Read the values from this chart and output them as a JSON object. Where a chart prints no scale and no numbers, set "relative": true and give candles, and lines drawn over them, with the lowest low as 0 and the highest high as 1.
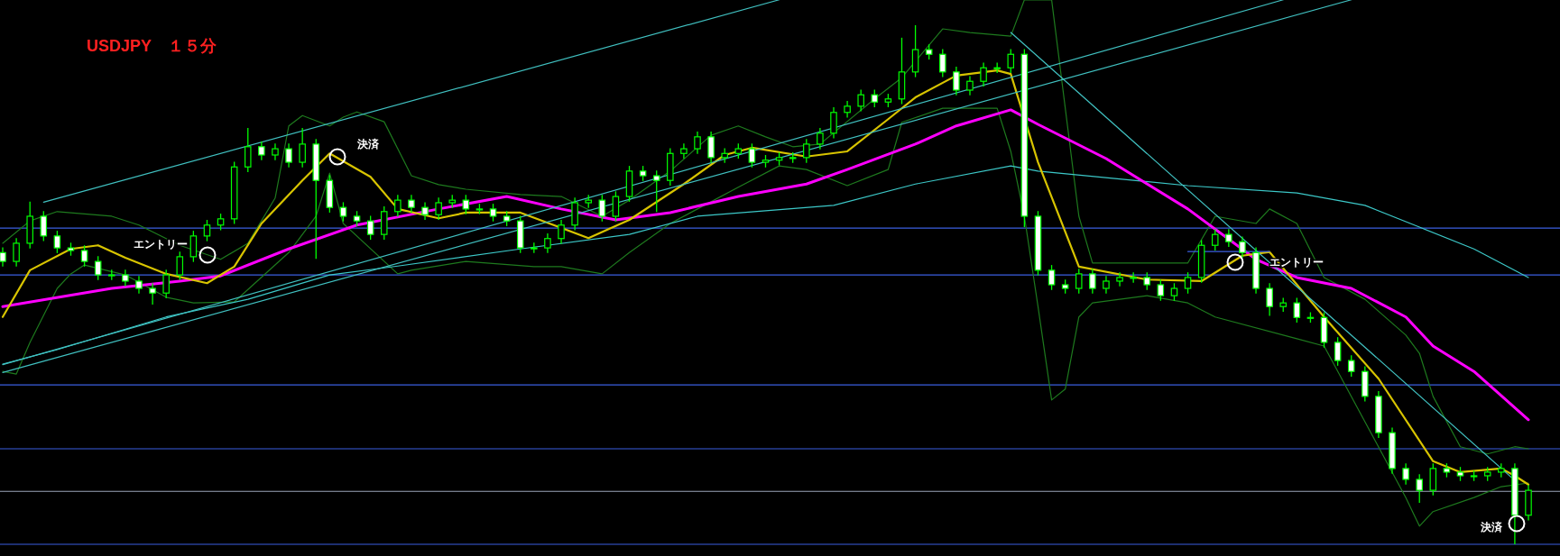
{
  "chart_data": {
    "type": "candlestick",
    "relative": true,
    "title": "USDJPY　１５分",
    "color": "#00ff00",
    "categories": [
      null,
      null,
      null,
      null,
      null,
      null,
      null,
      null,
      null,
      null,
      null,
      null,
      null,
      null,
      null,
      null,
      null,
      null,
      null,
      null,
      null,
      null,
      null,
      null,
      null,
      null,
      null,
      null,
      null,
      null,
      null,
      null,
      null,
      null,
      null,
      null,
      null,
      null,
      null,
      null,
      null,
      null,
      null,
      null,
      null,
      null,
      null,
      null,
      null,
      null,
      null,
      null,
      null,
      null,
      null,
      null,
      null,
      null,
      null,
      null,
      null,
      null,
      null,
      null,
      null,
      null,
      null,
      null,
      null,
      null,
      null,
      null,
      null,
      null,
      null,
      null,
      null,
      null,
      null,
      null,
      null,
      null,
      null,
      null,
      null,
      null,
      null,
      null,
      null,
      null,
      null,
      null,
      null,
      null,
      null,
      null,
      null,
      null,
      null,
      null,
      null,
      null,
      null,
      null,
      null,
      null,
      null,
      null,
      null,
      null,
      null,
      null,
      null
    ],
    "ohlc": [
      [
        0.562,
        0.572,
        0.535,
        0.545
      ],
      [
        0.545,
        0.59,
        0.535,
        0.58
      ],
      [
        0.58,
        0.66,
        0.57,
        0.632
      ],
      [
        0.632,
        0.642,
        0.584,
        0.594
      ],
      [
        0.594,
        0.604,
        0.561,
        0.571
      ],
      [
        0.571,
        0.581,
        0.556,
        0.566
      ],
      [
        0.566,
        0.576,
        0.535,
        0.545
      ],
      [
        0.545,
        0.555,
        0.509,
        0.519
      ],
      [
        0.519,
        0.529,
        0.509,
        0.519
      ],
      [
        0.519,
        0.529,
        0.497,
        0.507
      ],
      [
        0.507,
        0.517,
        0.483,
        0.493
      ],
      [
        0.493,
        0.503,
        0.462,
        0.484
      ],
      [
        0.484,
        0.529,
        0.474,
        0.519
      ],
      [
        0.519,
        0.564,
        0.509,
        0.554
      ],
      [
        0.554,
        0.604,
        0.544,
        0.594
      ],
      [
        0.594,
        0.625,
        0.584,
        0.615
      ],
      [
        0.615,
        0.637,
        0.605,
        0.627
      ],
      [
        0.627,
        0.737,
        0.617,
        0.727
      ],
      [
        0.727,
        0.802,
        0.717,
        0.766
      ],
      [
        0.766,
        0.776,
        0.74,
        0.75
      ],
      [
        0.75,
        0.772,
        0.74,
        0.762
      ],
      [
        0.762,
        0.772,
        0.726,
        0.736
      ],
      [
        0.736,
        0.802,
        0.726,
        0.771
      ],
      [
        0.771,
        0.781,
        0.55,
        0.701
      ],
      [
        0.701,
        0.711,
        0.639,
        0.649
      ],
      [
        0.649,
        0.659,
        0.622,
        0.632
      ],
      [
        0.632,
        0.642,
        0.613,
        0.623
      ],
      [
        0.623,
        0.633,
        0.587,
        0.597
      ],
      [
        0.597,
        0.651,
        0.587,
        0.641
      ],
      [
        0.641,
        0.673,
        0.631,
        0.663
      ],
      [
        0.663,
        0.673,
        0.639,
        0.649
      ],
      [
        0.649,
        0.659,
        0.625,
        0.635
      ],
      [
        0.635,
        0.668,
        0.625,
        0.658
      ],
      [
        0.658,
        0.673,
        0.648,
        0.663
      ],
      [
        0.663,
        0.673,
        0.636,
        0.646
      ],
      [
        0.646,
        0.656,
        0.636,
        0.646
      ],
      [
        0.646,
        0.656,
        0.622,
        0.632
      ],
      [
        0.632,
        0.642,
        0.613,
        0.623
      ],
      [
        0.623,
        0.633,
        0.561,
        0.571
      ],
      [
        0.571,
        0.581,
        0.561,
        0.571
      ],
      [
        0.571,
        0.599,
        0.561,
        0.589
      ],
      [
        0.589,
        0.625,
        0.579,
        0.615
      ],
      [
        0.615,
        0.668,
        0.605,
        0.658
      ],
      [
        0.658,
        0.673,
        0.648,
        0.663
      ],
      [
        0.663,
        0.673,
        0.622,
        0.632
      ],
      [
        0.632,
        0.68,
        0.622,
        0.67
      ],
      [
        0.67,
        0.729,
        0.66,
        0.719
      ],
      [
        0.719,
        0.729,
        0.7,
        0.71
      ],
      [
        0.71,
        0.72,
        0.64,
        0.701
      ],
      [
        0.701,
        0.763,
        0.691,
        0.753
      ],
      [
        0.753,
        0.772,
        0.743,
        0.762
      ],
      [
        0.762,
        0.795,
        0.752,
        0.785
      ],
      [
        0.785,
        0.795,
        0.735,
        0.745
      ],
      [
        0.745,
        0.763,
        0.735,
        0.753
      ],
      [
        0.753,
        0.772,
        0.743,
        0.762
      ],
      [
        0.762,
        0.772,
        0.726,
        0.736
      ],
      [
        0.736,
        0.75,
        0.726,
        0.74
      ],
      [
        0.74,
        0.755,
        0.73,
        0.745
      ],
      [
        0.745,
        0.755,
        0.735,
        0.745
      ],
      [
        0.745,
        0.781,
        0.735,
        0.771
      ],
      [
        0.771,
        0.802,
        0.761,
        0.792
      ],
      [
        0.792,
        0.842,
        0.782,
        0.832
      ],
      [
        0.832,
        0.854,
        0.822,
        0.844
      ],
      [
        0.844,
        0.876,
        0.834,
        0.866
      ],
      [
        0.866,
        0.876,
        0.842,
        0.852
      ],
      [
        0.852,
        0.868,
        0.842,
        0.858
      ],
      [
        0.858,
        0.976,
        0.848,
        0.91
      ],
      [
        0.91,
        1,
        0.9,
        0.953
      ],
      [
        0.953,
        0.963,
        0.934,
        0.944
      ],
      [
        0.944,
        0.954,
        0.9,
        0.91
      ],
      [
        0.91,
        0.92,
        0.865,
        0.875
      ],
      [
        0.875,
        0.902,
        0.865,
        0.892
      ],
      [
        0.892,
        0.928,
        0.882,
        0.918
      ],
      [
        0.918,
        0.928,
        0.908,
        0.918
      ],
      [
        0.918,
        0.954,
        0.908,
        0.944
      ],
      [
        0.944,
        0.954,
        0.611,
        0.632
      ],
      [
        0.632,
        0.642,
        0.518,
        0.528
      ],
      [
        0.528,
        0.538,
        0.49,
        0.5
      ],
      [
        0.5,
        0.51,
        0.483,
        0.493
      ],
      [
        0.493,
        0.531,
        0.483,
        0.521
      ],
      [
        0.521,
        0.531,
        0.483,
        0.493
      ],
      [
        0.493,
        0.517,
        0.483,
        0.507
      ],
      [
        0.507,
        0.524,
        0.497,
        0.514
      ],
      [
        0.514,
        0.524,
        0.504,
        0.514
      ],
      [
        0.514,
        0.524,
        0.49,
        0.5
      ],
      [
        0.5,
        0.51,
        0.469,
        0.479
      ],
      [
        0.479,
        0.503,
        0.469,
        0.493
      ],
      [
        0.493,
        0.524,
        0.483,
        0.514
      ],
      [
        0.514,
        0.586,
        0.504,
        0.576
      ],
      [
        0.576,
        0.607,
        0.566,
        0.597
      ],
      [
        0.597,
        0.607,
        0.573,
        0.583
      ],
      [
        0.583,
        0.593,
        0.552,
        0.562
      ],
      [
        0.562,
        0.572,
        0.483,
        0.493
      ],
      [
        0.493,
        0.503,
        0.44,
        0.458
      ],
      [
        0.458,
        0.475,
        0.448,
        0.465
      ],
      [
        0.465,
        0.475,
        0.427,
        0.437
      ],
      [
        0.437,
        0.447,
        0.427,
        0.437
      ],
      [
        0.437,
        0.447,
        0.379,
        0.389
      ],
      [
        0.389,
        0.399,
        0.344,
        0.354
      ],
      [
        0.354,
        0.364,
        0.323,
        0.333
      ],
      [
        0.333,
        0.343,
        0.275,
        0.285
      ],
      [
        0.285,
        0.295,
        0.205,
        0.215
      ],
      [
        0.215,
        0.225,
        0.136,
        0.146
      ],
      [
        0.146,
        0.156,
        0.115,
        0.125
      ],
      [
        0.125,
        0.135,
        0.08,
        0.104
      ],
      [
        0.104,
        0.156,
        0.094,
        0.146
      ],
      [
        0.146,
        0.156,
        0.129,
        0.139
      ],
      [
        0.139,
        0.149,
        0.122,
        0.132
      ],
      [
        0.132,
        0.142,
        0.122,
        0.132
      ],
      [
        0.132,
        0.149,
        0.122,
        0.139
      ],
      [
        0.139,
        0.156,
        0.129,
        0.146
      ],
      [
        0.146,
        0.156,
        0,
        0.056
      ],
      [
        0.056,
        0.114,
        0.046,
        0.104
      ]
    ],
    "series": [
      {
        "type": "line",
        "color": "#1e7a1e",
        "values": [
          0.58,
          null,
          0.623,
          null,
          0.641,
          null,
          null,
          null,
          0.632,
          null,
          0.615,
          null,
          null,
          0.576,
          null,
          null,
          0.549,
          null,
          0.58,
          null,
          0.667,
          0.806,
          0.826,
          null,
          0.806,
          0.823,
          0.833,
          null,
          0.814,
          null,
          0.71,
          null,
          0.693,
          null,
          0.684,
          null,
          null,
          null,
          0.674,
          null,
          null,
          0.67,
          null,
          null,
          0.632,
          null,
          0.663,
          null,
          null,
          0.719,
          null,
          null,
          0.788,
          null,
          0.806,
          null,
          0.785,
          null,
          0.766,
          null,
          0.771,
          null,
          null,
          null,
          0.858,
          null,
          0.899,
          null,
          null,
          0.993,
          null,
          0.986,
          null,
          null,
          0.979,
          1.049,
          null,
          1.049,
          null,
          0.632,
          0.542,
          null,
          null,
          null,
          null,
          null,
          null,
          0.542,
          null,
          0.632,
          null,
          null,
          0.618,
          0.646,
          null,
          0.618,
          null,
          0.514,
          null,
          null,
          0.472,
          null,
          null,
          0.403,
          0.368,
          0.285,
          null,
          0.188,
          null,
          0.174,
          null,
          0.188,
          0.184
        ]
      },
      {
        "type": "line",
        "color": "#1e7a1e",
        "values": [
          0.333,
          0.328,
          0.389,
          null,
          0.493,
          0.521,
          0.538,
          null,
          null,
          0.519,
          null,
          null,
          0.476,
          null,
          0.465,
          null,
          null,
          0.467,
          null,
          null,
          null,
          0.562,
          null,
          0.632,
          0.715,
          0.618,
          null,
          null,
          null,
          0.521,
          0.528,
          null,
          null,
          null,
          0.545,
          null,
          null,
          null,
          null,
          0.535,
          null,
          0.535,
          null,
          null,
          0.521,
          null,
          0.562,
          null,
          null,
          0.618,
          null,
          0.646,
          null,
          null,
          0.688,
          null,
          null,
          0.729,
          null,
          0.722,
          null,
          null,
          0.691,
          null,
          null,
          0.722,
          0.813,
          null,
          null,
          0.84,
          null,
          null,
          null,
          0.84,
          0.757,
          0.632,
          0.458,
          0.278,
          0.299,
          0.438,
          0.465,
          null,
          null,
          null,
          0.479,
          null,
          null,
          0.465,
          null,
          0.438,
          null,
          null,
          null,
          null,
          null,
          0.396,
          null,
          0.382,
          null,
          null,
          null,
          null,
          null,
          0.09,
          0.035,
          0.063,
          null,
          null,
          0.09,
          null,
          0.111,
          null,
          0.118
        ]
      },
      {
        "type": "line",
        "color": "#3cc8c8",
        "values": [
          0.347,
          null,
          null,
          null,
          0.375,
          null,
          null,
          null,
          null,
          null,
          null,
          null,
          0.438,
          null,
          null,
          null,
          null,
          null,
          0.472,
          null,
          null,
          null,
          null,
          null,
          0.519,
          null,
          null,
          null,
          null,
          0.536,
          null,
          null,
          null,
          null,
          null,
          null,
          null,
          null,
          0.569,
          null,
          null,
          null,
          null,
          null,
          null,
          null,
          0.597,
          null,
          null,
          null,
          null,
          0.632,
          null,
          null,
          null,
          null,
          null,
          null,
          null,
          null,
          null,
          0.653,
          null,
          null,
          null,
          null,
          null,
          0.694,
          null,
          null,
          null,
          null,
          null,
          null,
          0.729,
          null,
          0.719,
          null,
          null,
          null,
          null,
          null,
          null,
          null,
          null,
          null,
          null,
          0.691,
          null,
          null,
          null,
          null,
          null,
          null,
          null,
          0.677,
          null,
          null,
          null,
          null,
          0.653,
          null,
          null,
          null,
          0.611,
          null,
          null,
          null,
          0.569,
          null,
          null,
          null,
          0.514
        ]
      },
      {
        "type": "line",
        "color": "#ff00ff",
        "values": [
          0.458,
          null,
          null,
          null,
          null,
          null,
          null,
          null,
          0.493,
          null,
          null,
          null,
          null,
          0.507,
          null,
          null,
          0.517,
          null,
          null,
          null,
          null,
          0.569,
          null,
          null,
          null,
          null,
          0.615,
          null,
          null,
          null,
          null,
          null,
          0.646,
          null,
          null,
          null,
          null,
          0.67,
          null,
          null,
          null,
          0.646,
          null,
          null,
          null,
          0.625,
          null,
          null,
          null,
          0.639,
          null,
          null,
          null,
          null,
          0.67,
          null,
          null,
          null,
          null,
          0.694,
          null,
          null,
          0.722,
          null,
          null,
          null,
          null,
          0.771,
          null,
          null,
          0.806,
          null,
          null,
          null,
          0.837,
          null,
          0.809,
          null,
          null,
          null,
          null,
          0.743,
          null,
          null,
          null,
          null,
          null,
          0.646,
          null,
          null,
          null,
          null,
          0.549,
          null,
          null,
          0.514,
          null,
          null,
          null,
          0.493,
          null,
          null,
          null,
          0.438,
          null,
          0.382,
          null,
          null,
          0.333,
          null,
          null,
          null,
          0.24
        ]
      },
      {
        "type": "line",
        "color": "#d8c400",
        "values": [
          0.438,
          null,
          0.528,
          null,
          null,
          0.569,
          null,
          0.576,
          null,
          0.552,
          null,
          null,
          0.521,
          null,
          null,
          0.503,
          null,
          0.535,
          null,
          0.618,
          null,
          null,
          0.701,
          null,
          0.753,
          null,
          null,
          0.708,
          null,
          0.646,
          null,
          null,
          0.628,
          null,
          0.639,
          null,
          null,
          null,
          0.639,
          null,
          null,
          null,
          null,
          0.59,
          null,
          null,
          0.625,
          null,
          null,
          null,
          0.694,
          null,
          null,
          0.75,
          null,
          0.764,
          null,
          null,
          null,
          0.747,
          null,
          null,
          0.757,
          null,
          null,
          0.819,
          null,
          0.861,
          null,
          null,
          0.903,
          null,
          null,
          0.913,
          0.906,
          null,
          0.736,
          null,
          null,
          0.535,
          null,
          null,
          null,
          null,
          0.51,
          null,
          null,
          null,
          0.507,
          null,
          null,
          0.556,
          null,
          0.563,
          null,
          null,
          null,
          0.438,
          null,
          null,
          null,
          0.319,
          null,
          null,
          null,
          0.16,
          null,
          0.139,
          null,
          null,
          0.146,
          0.132,
          0.115
        ]
      },
      {
        "type": "line",
        "color": "#40c0c0",
        "values": [
          null,
          null,
          null,
          0.659,
          null,
          null,
          null,
          null,
          null,
          null,
          null,
          null,
          null,
          null,
          null,
          null,
          null,
          null,
          null,
          null,
          null,
          null,
          null,
          null,
          null,
          null,
          null,
          null,
          null,
          null,
          null,
          null,
          null,
          null,
          null,
          null,
          null,
          null,
          null,
          null,
          null,
          null,
          null,
          null,
          null,
          null,
          null,
          null,
          null,
          null,
          null,
          null,
          null,
          null,
          null,
          null,
          null,
          1.049,
          null,
          null,
          null,
          null,
          null,
          null,
          null,
          null,
          null,
          null,
          null,
          null,
          null,
          null,
          null,
          null,
          null,
          null,
          null,
          null,
          null,
          null,
          null,
          null,
          null,
          null,
          null,
          null,
          null,
          null,
          null,
          null,
          null,
          null,
          null,
          null,
          null,
          null,
          null,
          null,
          null,
          null,
          null,
          null,
          null,
          null,
          null,
          null,
          null,
          null,
          null,
          null,
          null,
          null,
          null
        ]
      },
      {
        "type": "line",
        "color": "#40c0c0",
        "values": [
          0.346,
          null,
          null,
          null,
          null,
          null,
          null,
          null,
          null,
          null,
          null,
          null,
          null,
          null,
          null,
          null,
          null,
          null,
          null,
          null,
          null,
          null,
          null,
          null,
          null,
          null,
          null,
          null,
          null,
          null,
          null,
          null,
          null,
          null,
          null,
          null,
          null,
          null,
          null,
          null,
          null,
          null,
          null,
          null,
          null,
          null,
          null,
          null,
          null,
          null,
          null,
          null,
          null,
          null,
          null,
          null,
          null,
          null,
          null,
          null,
          null,
          null,
          null,
          null,
          null,
          null,
          null,
          null,
          null,
          null,
          null,
          null,
          null,
          null,
          null,
          null,
          null,
          null,
          null,
          null,
          null,
          null,
          null,
          null,
          null,
          null,
          null,
          null,
          null,
          null,
          null,
          null,
          null,
          null,
          1.049,
          null,
          null,
          null,
          null,
          null,
          null,
          null,
          null,
          null,
          null,
          null,
          null,
          null,
          null,
          null,
          null,
          null,
          null
        ]
      },
      {
        "type": "line",
        "color": "#40c0c0",
        "values": [
          0.331,
          null,
          null,
          null,
          null,
          null,
          null,
          null,
          null,
          null,
          null,
          null,
          null,
          null,
          null,
          null,
          null,
          null,
          null,
          null,
          null,
          null,
          null,
          null,
          null,
          null,
          null,
          null,
          null,
          null,
          null,
          null,
          null,
          null,
          null,
          null,
          null,
          null,
          null,
          null,
          null,
          null,
          null,
          null,
          null,
          null,
          null,
          null,
          null,
          null,
          null,
          null,
          null,
          null,
          null,
          null,
          null,
          null,
          null,
          null,
          null,
          null,
          null,
          null,
          null,
          null,
          null,
          null,
          null,
          null,
          null,
          null,
          null,
          null,
          null,
          null,
          null,
          null,
          null,
          null,
          null,
          null,
          null,
          null,
          null,
          null,
          null,
          null,
          null,
          null,
          null,
          null,
          null,
          null,
          null,
          null,
          null,
          null,
          null,
          1.049,
          null,
          null,
          null,
          null,
          null,
          null,
          null,
          null,
          null,
          null,
          null,
          null,
          null
        ]
      },
      {
        "type": "line",
        "color": "#40c0c0",
        "values": [
          null,
          null,
          null,
          null,
          null,
          null,
          null,
          null,
          null,
          null,
          null,
          null,
          null,
          null,
          null,
          null,
          null,
          null,
          null,
          null,
          null,
          null,
          null,
          null,
          null,
          null,
          null,
          null,
          null,
          null,
          null,
          null,
          null,
          null,
          null,
          null,
          null,
          null,
          null,
          null,
          null,
          null,
          null,
          null,
          null,
          null,
          null,
          null,
          null,
          null,
          null,
          null,
          null,
          null,
          null,
          null,
          null,
          null,
          null,
          null,
          null,
          null,
          null,
          null,
          null,
          null,
          null,
          null,
          null,
          null,
          null,
          null,
          null,
          null,
          0.986,
          null,
          null,
          null,
          null,
          null,
          null,
          null,
          null,
          null,
          null,
          null,
          null,
          null,
          null,
          null,
          null,
          null,
          null,
          null,
          null,
          null,
          null,
          null,
          null,
          null,
          null,
          null,
          null,
          null,
          null,
          null,
          null,
          null,
          null,
          null,
          null,
          0.123,
          null
        ]
      },
      {
        "type": "line",
        "color": "#3b5fe0",
        "values": [
          null,
          null,
          null,
          null,
          null,
          null,
          null,
          null,
          null,
          null,
          null,
          null,
          null,
          null,
          null,
          null,
          null,
          null,
          null,
          null,
          null,
          null,
          null,
          null,
          null,
          null,
          null,
          null,
          null,
          null,
          null,
          null,
          null,
          null,
          null,
          null,
          null,
          null,
          null,
          null,
          null,
          null,
          null,
          null,
          null,
          null,
          null,
          null,
          null,
          null,
          null,
          null,
          null,
          null,
          null,
          null,
          null,
          null,
          null,
          null,
          null,
          null,
          null,
          null,
          null,
          null,
          null,
          null,
          null,
          null,
          null,
          null,
          null,
          null,
          null,
          null,
          null,
          null,
          null,
          null,
          null,
          null,
          null,
          null,
          null,
          null,
          null,
          0.564,
          null,
          null,
          null,
          null,
          null,
          0.564,
          null,
          null,
          null,
          null,
          null,
          null,
          null,
          null,
          null,
          null,
          null,
          null,
          null,
          null,
          null,
          null,
          null,
          null,
          null
        ]
      }
    ],
    "ref_lines": [
      {
        "axis": "y",
        "value": 0.609,
        "color": "#3b5fe0"
      },
      {
        "axis": "y",
        "value": 0.519,
        "color": "#3b5fe0"
      },
      {
        "axis": "y",
        "value": 0.307,
        "color": "#3b5fe0"
      },
      {
        "axis": "y",
        "value": 0.184,
        "color": "#3b5fe0"
      },
      {
        "axis": "y",
        "value": 0.102,
        "color": "#9aa4b8"
      },
      {
        "axis": "y",
        "value": 0,
        "color": "#3b5fe0"
      }
    ],
    "annotations": [
      "エントリー",
      "決済",
      "エントリー",
      "決済"
    ]
  }
}
